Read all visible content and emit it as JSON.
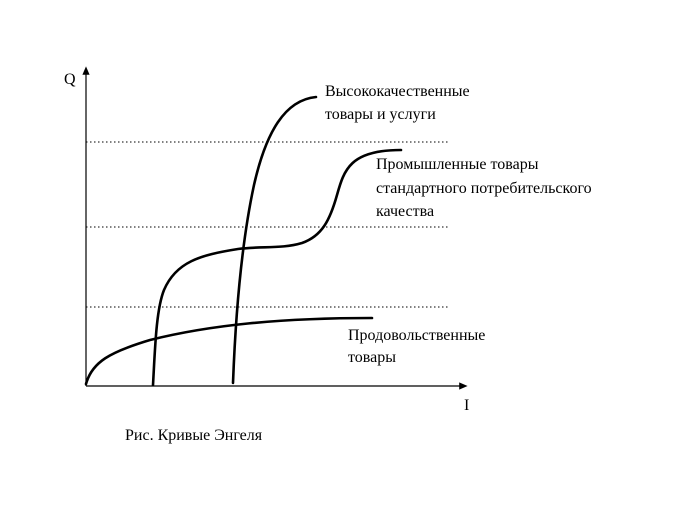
{
  "axes": {
    "y_label": "Q",
    "x_label": "I"
  },
  "curves": [
    {
      "id": "food",
      "label_lines": [
        "Продовольственные",
        "товары"
      ]
    },
    {
      "id": "industrial",
      "label_lines": [
        "Промышленные товары",
        "стандартного потребительского",
        "качества"
      ]
    },
    {
      "id": "luxury",
      "label_lines": [
        "Высококачественные",
        "товары и услуги"
      ]
    }
  ],
  "caption": "Рис. Кривые Энгеля"
}
